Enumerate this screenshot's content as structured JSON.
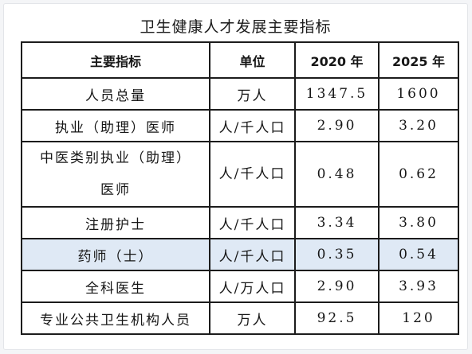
{
  "title": "卫生健康人才发展主要指标",
  "headers": {
    "indicator": "主要指标",
    "unit": "单位",
    "year_2020": "2020 年",
    "year_2025": "2025 年"
  },
  "rows": [
    {
      "indicator": "人员总量",
      "unit": "万人",
      "v2020": "1347.5",
      "v2025": "1600",
      "highlight": false
    },
    {
      "indicator": "执业（助理）医师",
      "unit": "人/千人口",
      "v2020": "2.90",
      "v2025": "3.20",
      "highlight": false
    },
    {
      "indicator": "中医类别执业（助理）医师",
      "unit": "人/千人口",
      "v2020": "0.48",
      "v2025": "0.62",
      "highlight": false
    },
    {
      "indicator": "注册护士",
      "unit": "人/千人口",
      "v2020": "3.34",
      "v2025": "3.80",
      "highlight": false
    },
    {
      "indicator": "药师（士）",
      "unit": "人/千人口",
      "v2020": "0.35",
      "v2025": "0.54",
      "highlight": true
    },
    {
      "indicator": "全科医生",
      "unit": "人/万人口",
      "v2020": "2.90",
      "v2025": "3.93",
      "highlight": false
    },
    {
      "indicator": "专业公共卫生机构人员",
      "unit": "万人",
      "v2020": "92.5",
      "v2025": "120",
      "highlight": false
    }
  ],
  "colors": {
    "highlight_row": "#dfe9f5",
    "border": "#1c1c1c",
    "background": "#f4f5f7"
  }
}
